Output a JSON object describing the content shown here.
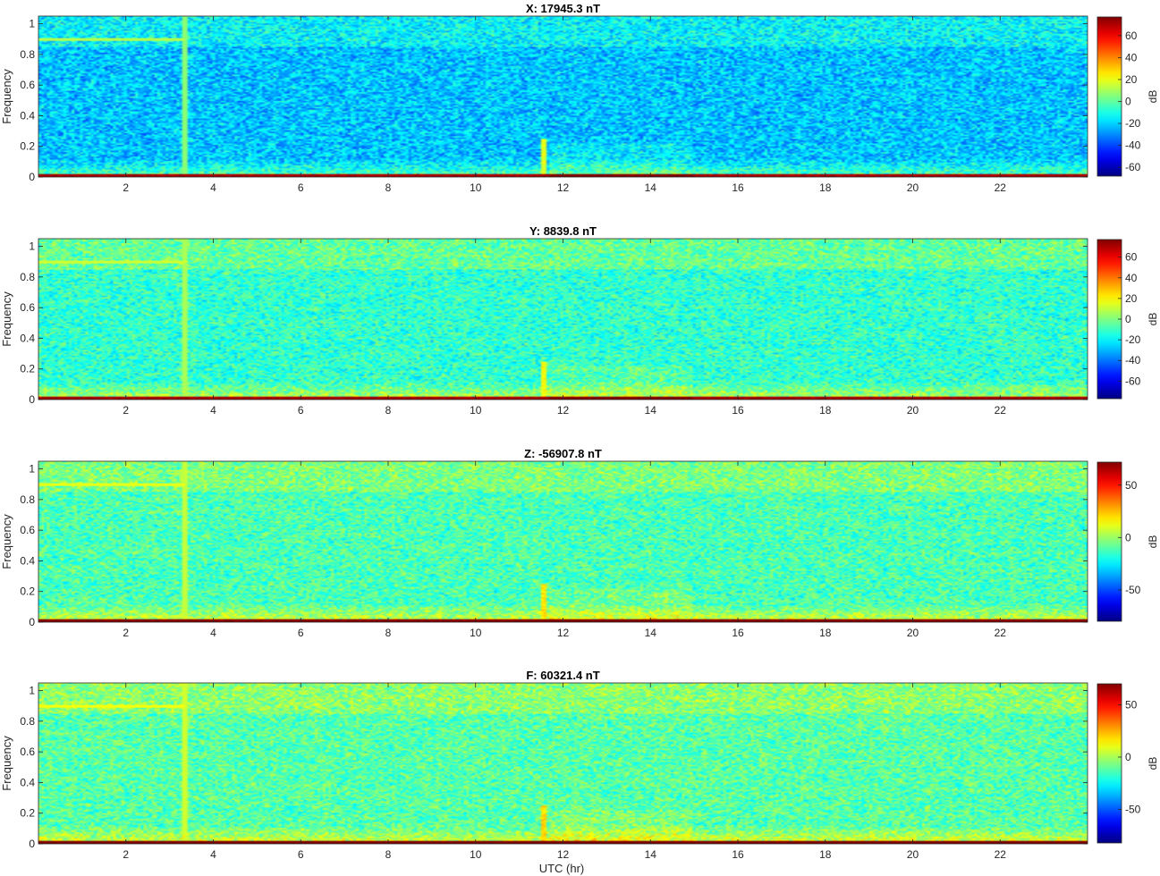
{
  "figure": {
    "xlabel": "UTC (hr)"
  },
  "chart_data": [
    {
      "type": "heatmap",
      "title": "X: 17945.3 nT",
      "xlabel": "",
      "ylabel": "Frequency",
      "xlim": [
        0,
        24
      ],
      "ylim": [
        0,
        1.05
      ],
      "x_ticks": [
        2,
        4,
        6,
        8,
        10,
        12,
        14,
        16,
        18,
        20,
        22
      ],
      "y_ticks": [
        0,
        0.2,
        0.4,
        0.6,
        0.8,
        1
      ],
      "colorbar": {
        "label": "dB",
        "range": [
          -68,
          77
        ],
        "ticks": [
          -60,
          -40,
          -20,
          0,
          20,
          40,
          60
        ]
      },
      "colormap": "jet",
      "background_db": -22,
      "features": {
        "calibration_end_hr": 3.35,
        "calibration_freq": 0.9,
        "event_hr": 11.55,
        "low_freq_band": [
          0,
          0.06
        ],
        "high_freq_band": [
          0.85,
          1.05
        ]
      }
    },
    {
      "type": "heatmap",
      "title": "Y: 8839.8 nT",
      "xlabel": "",
      "ylabel": "Frequency",
      "xlim": [
        0,
        24
      ],
      "ylim": [
        0,
        1.05
      ],
      "x_ticks": [
        2,
        4,
        6,
        8,
        10,
        12,
        14,
        16,
        18,
        20,
        22
      ],
      "y_ticks": [
        0,
        0.2,
        0.4,
        0.6,
        0.8,
        1
      ],
      "colorbar": {
        "label": "dB",
        "range": [
          -77,
          77
        ],
        "ticks": [
          -60,
          -40,
          -20,
          0,
          20,
          40,
          60
        ]
      },
      "colormap": "jet",
      "background_db": -12,
      "features": {
        "calibration_end_hr": 3.35,
        "calibration_freq": 0.9,
        "event_hr": 11.55,
        "low_freq_band": [
          0,
          0.06
        ],
        "high_freq_band": [
          0.85,
          1.05
        ]
      }
    },
    {
      "type": "heatmap",
      "title": "Z: -56907.8 nT",
      "xlabel": "",
      "ylabel": "Frequency",
      "xlim": [
        0,
        24
      ],
      "ylim": [
        0,
        1.05
      ],
      "x_ticks": [
        2,
        4,
        6,
        8,
        10,
        12,
        14,
        16,
        18,
        20,
        22
      ],
      "y_ticks": [
        0,
        0.2,
        0.4,
        0.6,
        0.8,
        1
      ],
      "colorbar": {
        "label": "dB",
        "range": [
          -80,
          72
        ],
        "ticks": [
          -50,
          0,
          50
        ]
      },
      "colormap": "jet",
      "background_db": -12,
      "features": {
        "calibration_end_hr": 3.35,
        "calibration_freq": 0.9,
        "event_hr": 11.55,
        "low_freq_band": [
          0,
          0.06
        ],
        "high_freq_band": [
          0.85,
          1.05
        ]
      }
    },
    {
      "type": "heatmap",
      "title": "F: 60321.4 nT",
      "xlabel": "UTC (hr)",
      "ylabel": "Frequency",
      "xlim": [
        0,
        24
      ],
      "ylim": [
        0,
        1.05
      ],
      "x_ticks": [
        2,
        4,
        6,
        8,
        10,
        12,
        14,
        16,
        18,
        20,
        22
      ],
      "y_ticks": [
        0,
        0.2,
        0.4,
        0.6,
        0.8,
        1
      ],
      "colorbar": {
        "label": "dB",
        "range": [
          -82,
          70
        ],
        "ticks": [
          -50,
          0,
          50
        ]
      },
      "colormap": "jet",
      "background_db": -12,
      "features": {
        "calibration_end_hr": 3.35,
        "calibration_freq": 0.9,
        "event_hr": 11.55,
        "low_freq_band": [
          0,
          0.06
        ],
        "high_freq_band": [
          0.85,
          1.05
        ]
      }
    }
  ]
}
